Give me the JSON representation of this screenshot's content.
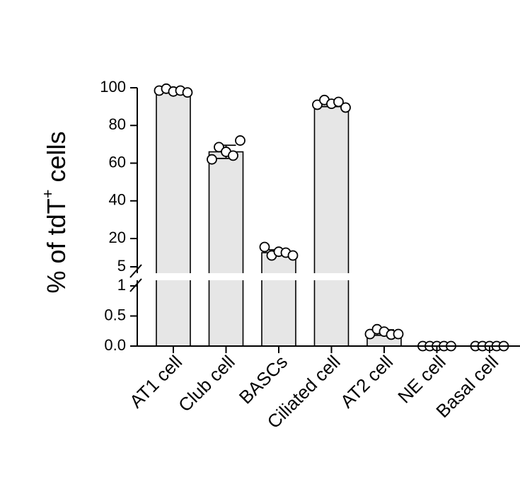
{
  "chart_data": {
    "type": "bar",
    "title": "",
    "ylabel": "% of tdT",
    "ylabel_superscript": "+",
    "ylabel_suffix": " cells",
    "xlabel": "",
    "categories": [
      "AT1 cell",
      "Club cell",
      "BASCs",
      "Ciliated cell",
      "AT2 cell",
      "NE cell",
      "Basal cell"
    ],
    "values": [
      98.5,
      66,
      12.5,
      91.5,
      0.22,
      0,
      0
    ],
    "points": [
      [
        98.5,
        99.5,
        98,
        98.5,
        97.5
      ],
      [
        62,
        68.5,
        66,
        64,
        72
      ],
      [
        15.5,
        11,
        13,
        12.5,
        11
      ],
      [
        91,
        93.5,
        91.5,
        92.5,
        89.5
      ],
      [
        0.2,
        0.28,
        0.24,
        0.19,
        0.2
      ],
      [
        0,
        0,
        0,
        0,
        0
      ],
      [
        0,
        0,
        0,
        0,
        0
      ]
    ],
    "errors": [
      [
        97.5,
        99.5
      ],
      [
        62.5,
        69.5
      ],
      [
        11,
        14
      ],
      [
        90,
        93
      ],
      [
        0.18,
        0.27
      ],
      [
        0,
        0
      ],
      [
        0,
        0
      ]
    ],
    "bar_color": "#e6e6e6",
    "axis_break": true,
    "y_upper_segment": {
      "range": [
        5,
        100
      ],
      "ticks": [
        "100",
        "80",
        "60",
        "40",
        "20",
        "5"
      ]
    },
    "y_lower_segment": {
      "range": [
        0,
        1
      ],
      "ticks": [
        "1",
        "0.5",
        "0.0"
      ]
    },
    "grid": false,
    "legend": "none"
  }
}
